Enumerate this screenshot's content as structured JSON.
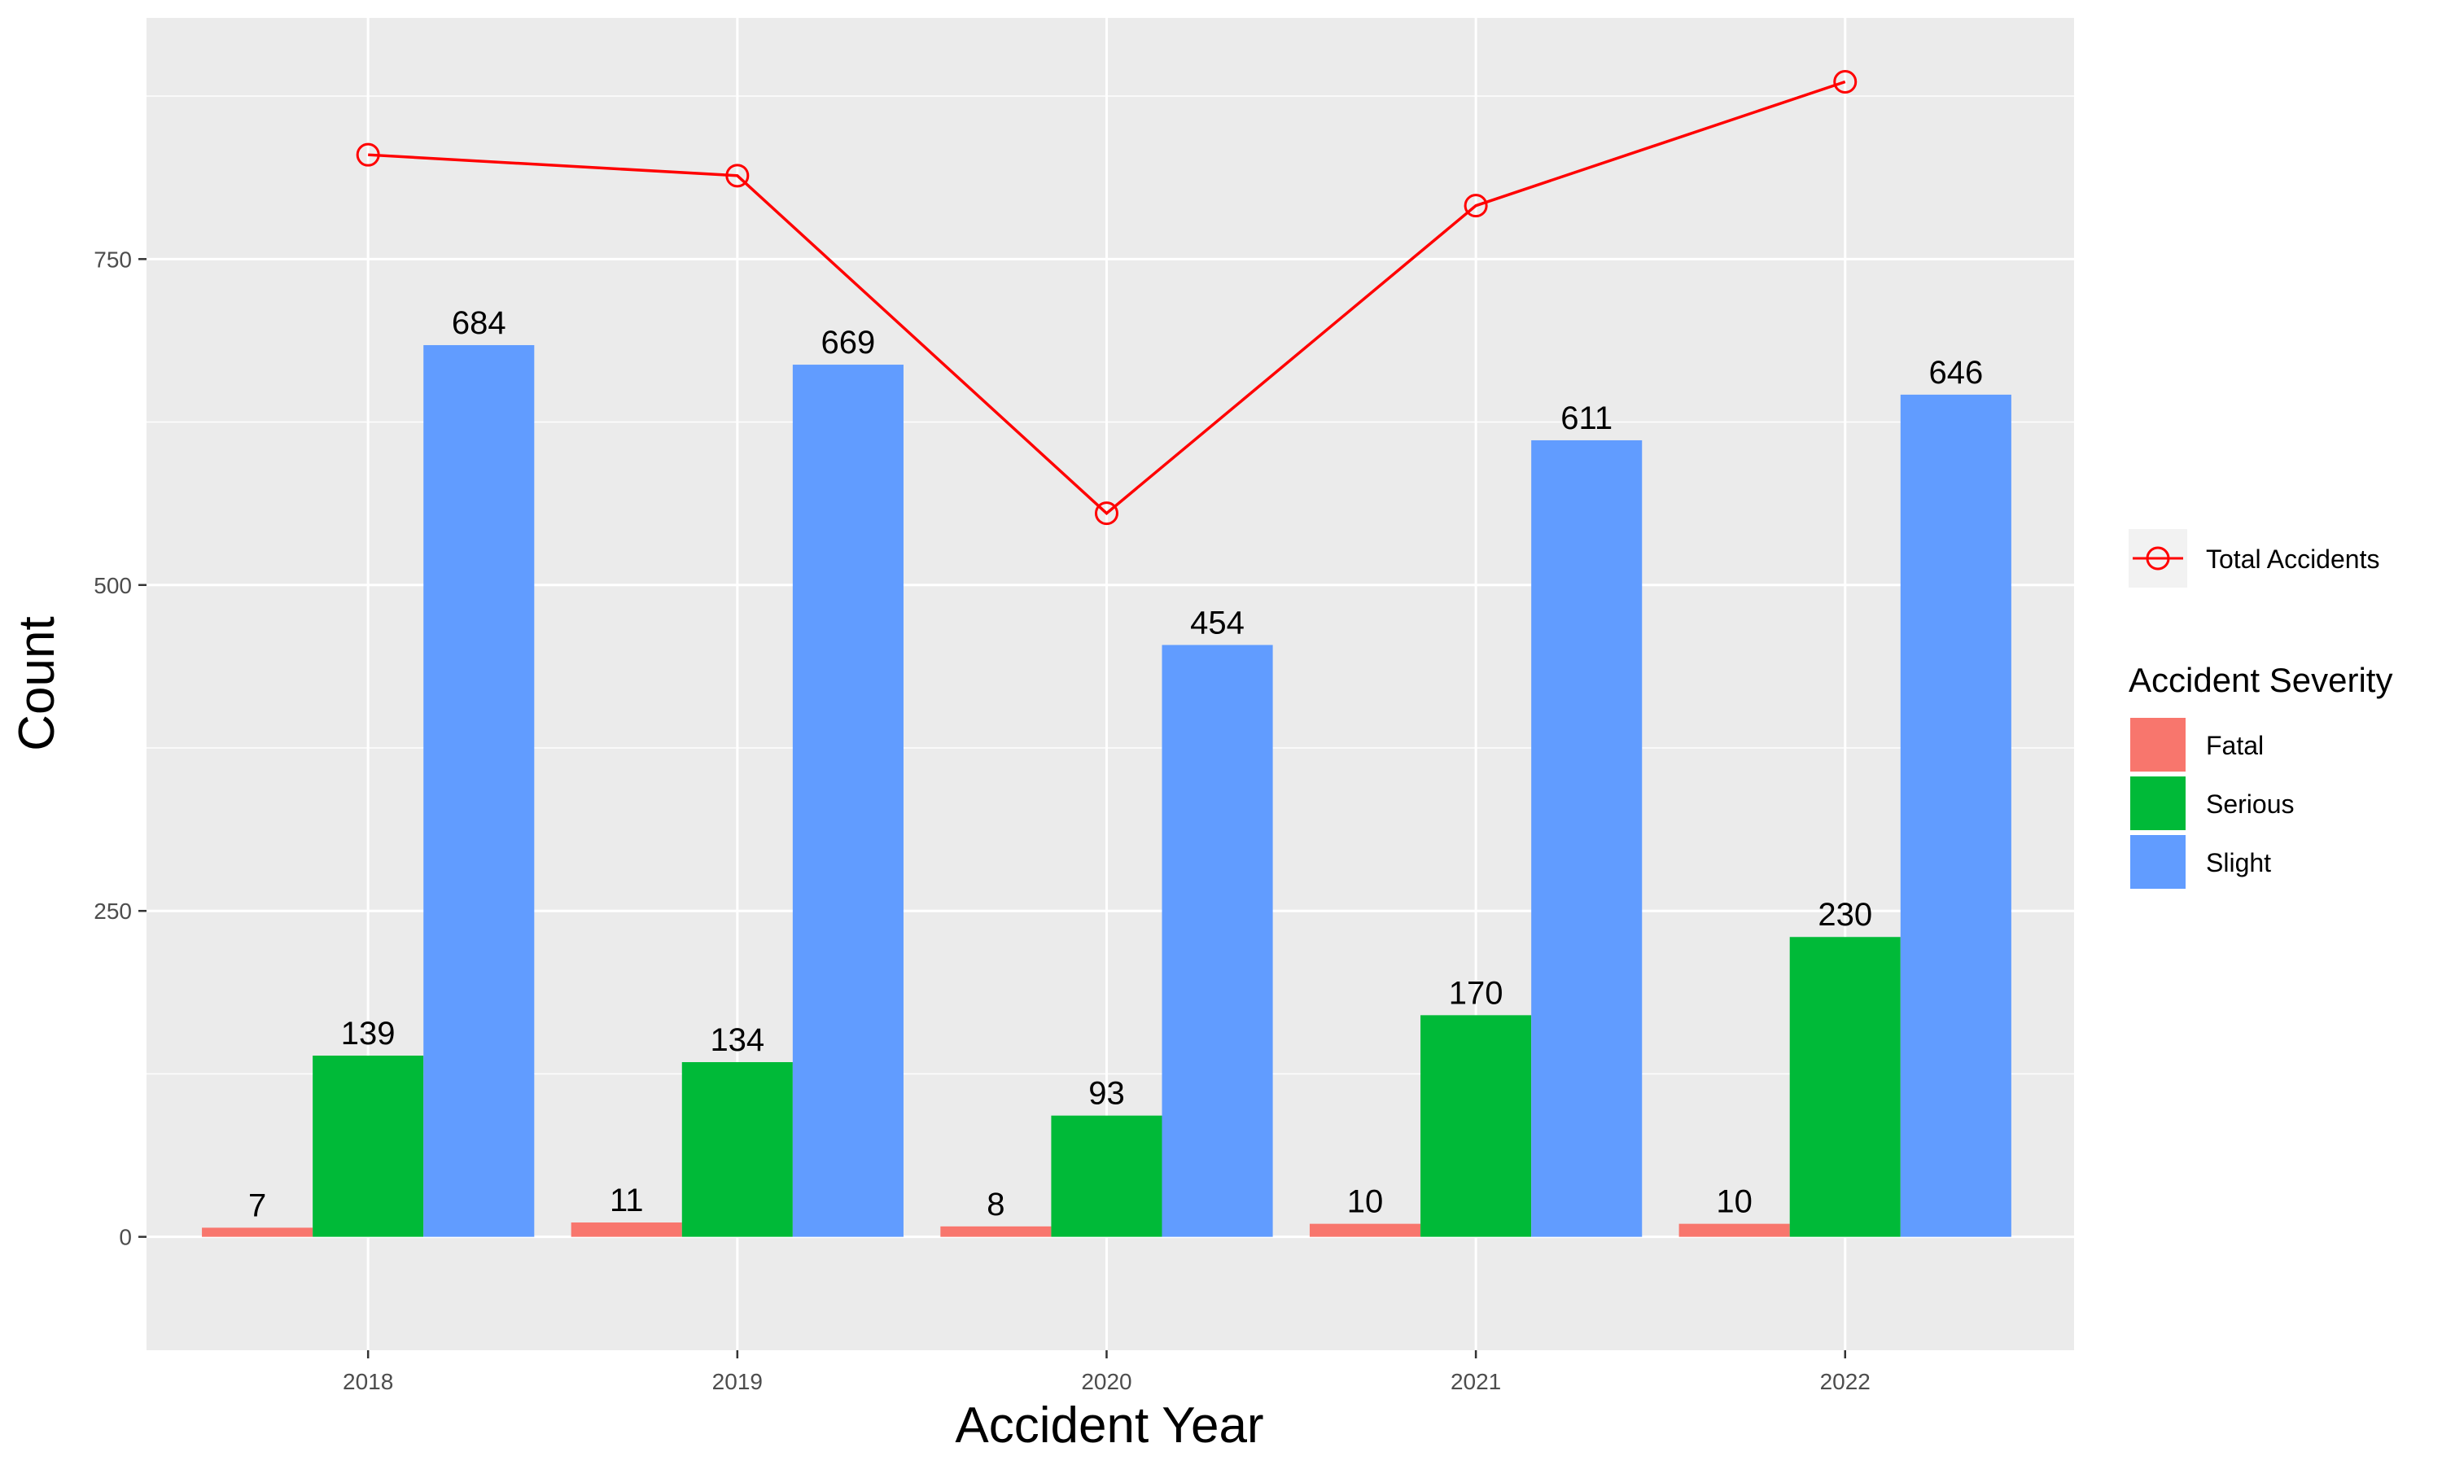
{
  "chart_data": {
    "type": "bar",
    "xlabel": "Accident Year",
    "ylabel": "Count",
    "categories": [
      "2018",
      "2019",
      "2020",
      "2021",
      "2022"
    ],
    "ylim": [
      -87,
      935
    ],
    "y_ticks": [
      0,
      250,
      500,
      750
    ],
    "grid": true,
    "series": [
      {
        "name": "Fatal",
        "values": [
          7,
          11,
          8,
          10,
          10
        ]
      },
      {
        "name": "Serious",
        "values": [
          139,
          134,
          93,
          170,
          230
        ]
      },
      {
        "name": "Slight",
        "values": [
          684,
          669,
          454,
          611,
          646
        ]
      }
    ],
    "line_series": {
      "name": "Total Accidents",
      "type": "line",
      "values": [
        830,
        814,
        555,
        791,
        886
      ]
    },
    "legend_title": "Accident Severity",
    "legend_position": "right"
  },
  "colors": {
    "fatal": "#F8766D",
    "serious": "#00BA38",
    "slight": "#619CFF",
    "total_line": "#FF0000",
    "panel_bg": "#EBEBEB",
    "grid": "#FFFFFF"
  }
}
